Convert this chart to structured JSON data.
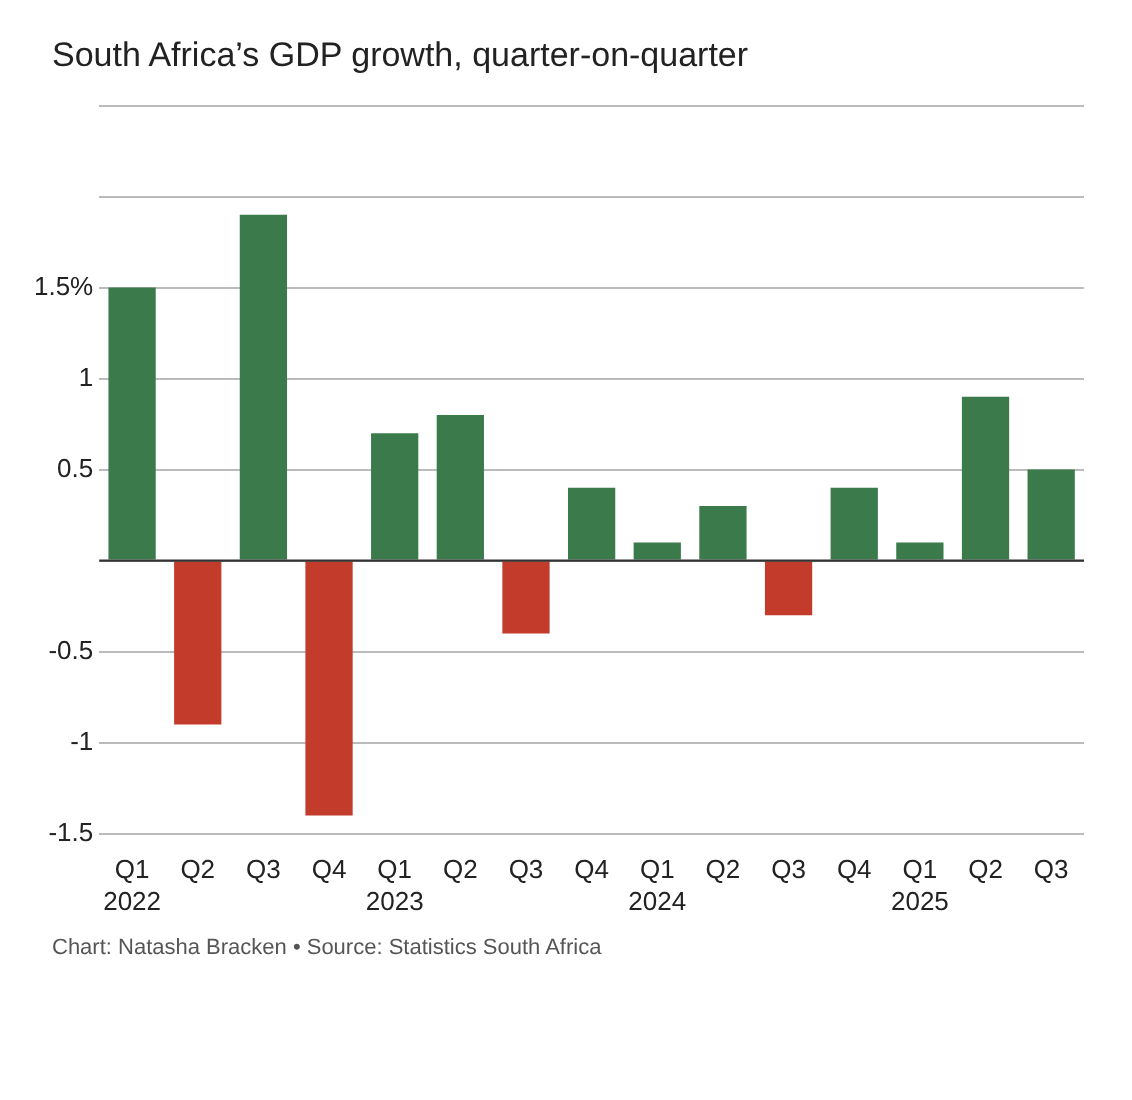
{
  "chart_data": {
    "type": "bar",
    "title": "South Africa’s GDP growth, quarter-on-quarter",
    "categories": [
      "Q1\n2022",
      "Q2",
      "Q3",
      "Q4",
      "Q1\n2023",
      "Q2",
      "Q3",
      "Q4",
      "Q1\n2024",
      "Q2",
      "Q3",
      "Q4",
      "Q1\n2025",
      "Q2",
      "Q3"
    ],
    "values": [
      1.5,
      -0.9,
      1.9,
      -1.4,
      0.7,
      0.8,
      -0.4,
      0.4,
      0.1,
      0.3,
      -0.3,
      0.4,
      0.1,
      0.9,
      0.5
    ],
    "colors": [
      "#3b7a4a",
      "#c23b2b",
      "#3b7a4a",
      "#c23b2b",
      "#3b7a4a",
      "#3b7a4a",
      "#c23b2b",
      "#3b7a4a",
      "#3b7a4a",
      "#3b7a4a",
      "#c23b2b",
      "#3b7a4a",
      "#3b7a4a",
      "#3b7a4a",
      "#3b7a4a"
    ],
    "ylim": [
      -1.5,
      2.5
    ],
    "yticks": [
      -1.5,
      -1,
      -0.5,
      {
        "value": 0,
        "label": null
      },
      0.5,
      1,
      {
        "value": 1.5,
        "label": "1.5%"
      },
      {
        "value": 2,
        "label": null
      },
      {
        "value": 2.5,
        "label": null
      }
    ],
    "grid": "y",
    "legend": false,
    "annotations": [
      "Chart: Natasha Bracken • Source: Statistics South Africa"
    ]
  }
}
